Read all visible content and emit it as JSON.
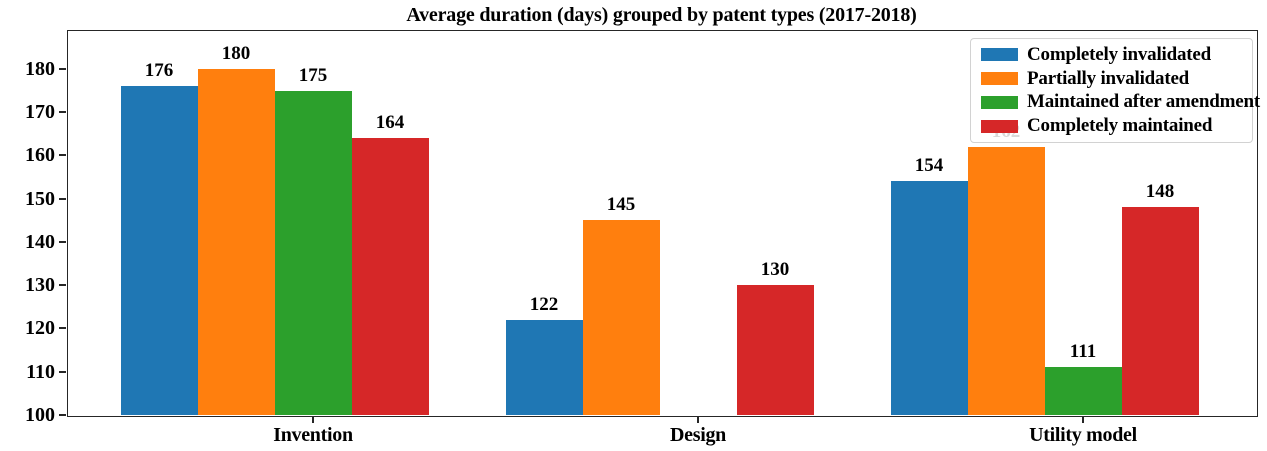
{
  "chart_data": {
    "type": "bar",
    "title": "Average duration (days) grouped by patent types (2017-2018)",
    "categories": [
      "Invention",
      "Design",
      "Utility model"
    ],
    "series": [
      {
        "name": "Completely invalidated",
        "color": "#1f77b4",
        "values": [
          176,
          122,
          154
        ]
      },
      {
        "name": "Partially invalidated",
        "color": "#ff7f0e",
        "values": [
          180,
          145,
          162
        ]
      },
      {
        "name": "Maintained after amendment",
        "color": "#2ca02c",
        "values": [
          175,
          null,
          111
        ]
      },
      {
        "name": "Completely maintained",
        "color": "#d62728",
        "values": [
          164,
          130,
          148
        ]
      }
    ],
    "ylim": [
      100,
      189
    ],
    "yticks": [
      100,
      110,
      120,
      130,
      140,
      150,
      160,
      170,
      180
    ],
    "bar_value_labels": true,
    "legend_position": "upper right",
    "grid": false,
    "axis_color": "#262626",
    "background_color": "#ffffff",
    "xlabel": "",
    "ylabel": ""
  }
}
